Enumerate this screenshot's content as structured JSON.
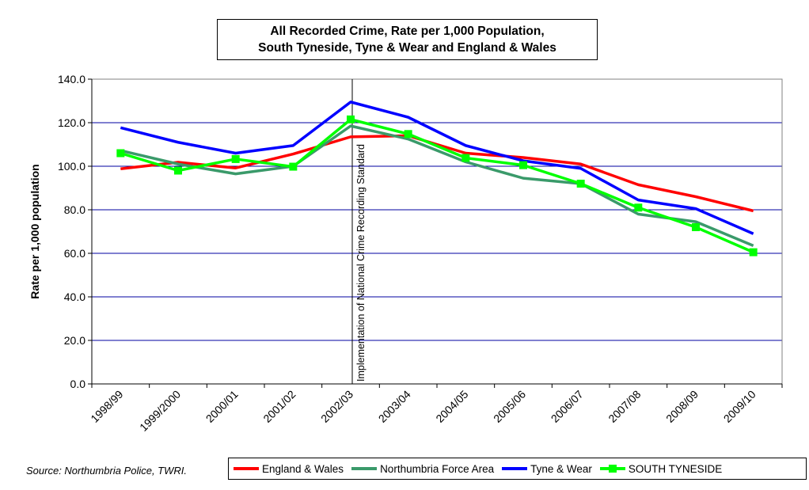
{
  "chart_data": {
    "type": "line",
    "title_lines": [
      "All Recorded Crime, Rate per 1,000 Population,",
      "South Tyneside, Tyne & Wear and England & Wales"
    ],
    "ylabel": "Rate per 1,000 population",
    "xlabel": "",
    "ylim": [
      0,
      140
    ],
    "yticks": [
      "0.0",
      "20.0",
      "40.0",
      "60.0",
      "80.0",
      "100.0",
      "120.0",
      "140.0"
    ],
    "grid": "horizontal",
    "legend_position": "bottom",
    "categories": [
      "1998/99",
      "1999/2000",
      "2000/01",
      "2001/02",
      "2002/03",
      "2003/04",
      "2004/05",
      "2005/06",
      "2006/07",
      "2007/08",
      "2008/09",
      "2009/10"
    ],
    "series": [
      {
        "name": "England & Wales",
        "color": "#ff0000",
        "marker": "none",
        "values": [
          98.8,
          101.8,
          99.2,
          105.6,
          113.5,
          114.0,
          106.0,
          104.0,
          101.0,
          91.5,
          86.0,
          79.5
        ]
      },
      {
        "name": "Northumbria Force Area",
        "color": "#3a9a6a",
        "marker": "none",
        "values": [
          107.2,
          101.0,
          96.5,
          100.0,
          118.5,
          112.5,
          102.0,
          94.5,
          92.0,
          78.0,
          74.5,
          63.5
        ]
      },
      {
        "name": "Tyne & Wear",
        "color": "#0000ff",
        "marker": "none",
        "values": [
          117.7,
          111.0,
          106.0,
          109.5,
          129.5,
          122.5,
          109.5,
          102.5,
          99.0,
          84.5,
          80.5,
          69.0
        ]
      },
      {
        "name": "SOUTH TYNESIDE",
        "color": "#00ff00",
        "marker": "square",
        "values": [
          106.0,
          98.0,
          103.3,
          99.8,
          121.5,
          114.8,
          103.8,
          100.5,
          92.0,
          81.0,
          72.0,
          60.5
        ]
      }
    ],
    "annotation": {
      "text": "Implementation of National Crime Recording Standard",
      "at_category": "2002/03"
    },
    "source": "Source: Northumbria Police, TWRI."
  }
}
